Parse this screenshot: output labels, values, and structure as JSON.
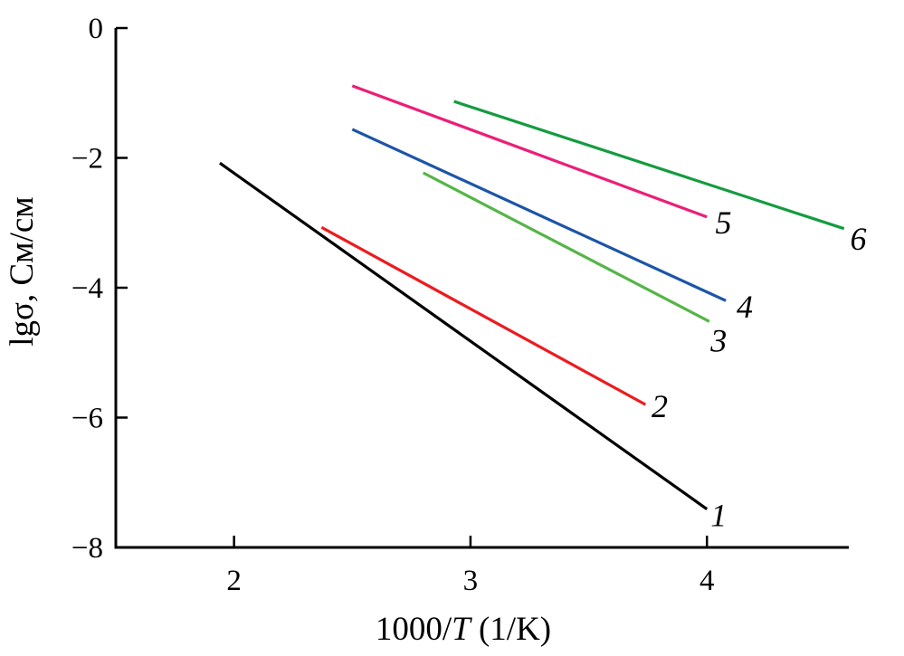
{
  "figure": {
    "background": "#ffffff",
    "axis_color": "#000000"
  },
  "chart_data": {
    "type": "line",
    "title": "",
    "xlabel": "1000/T (1/K)",
    "xlabel_parts": [
      {
        "text": "1000/",
        "italic": false
      },
      {
        "text": "T",
        "italic": true
      },
      {
        "text": " (1/K)",
        "italic": false
      }
    ],
    "ylabel": "lgσ, См/см",
    "xlim": [
      1.5,
      4.6
    ],
    "ylim": [
      -8,
      0
    ],
    "x_ticks": [
      2,
      3,
      4
    ],
    "y_ticks": [
      0,
      -2,
      -4,
      -6,
      -8
    ],
    "grid": false,
    "legend_position": "inline-labels-at-line-ends",
    "series": [
      {
        "name": "curve-1",
        "label": "1",
        "color": "#000000",
        "points": [
          [
            1.94,
            -2.08
          ],
          [
            4.0,
            -7.41
          ]
        ],
        "label_pos": [
          4.05,
          -7.49
        ]
      },
      {
        "name": "curve-2",
        "label": "2",
        "color": "#EC1B1E",
        "points": [
          [
            2.37,
            -3.07
          ],
          [
            3.74,
            -5.8
          ]
        ],
        "label_pos": [
          3.8,
          -5.81
        ]
      },
      {
        "name": "curve-3",
        "label": "3",
        "color": "#55B548",
        "points": [
          [
            2.8,
            -2.23
          ],
          [
            4.01,
            -4.52
          ]
        ],
        "label_pos": [
          4.05,
          -4.8
        ]
      },
      {
        "name": "curve-4",
        "label": "4",
        "color": "#1C55A8",
        "points": [
          [
            2.5,
            -1.56
          ],
          [
            4.08,
            -4.2
          ]
        ],
        "label_pos": [
          4.16,
          -4.28
        ]
      },
      {
        "name": "curve-5",
        "label": "5",
        "color": "#EC1E77",
        "points": [
          [
            2.5,
            -0.89
          ],
          [
            4.0,
            -2.91
          ]
        ],
        "label_pos": [
          4.07,
          -2.98
        ]
      },
      {
        "name": "curve-6",
        "label": "6",
        "color": "#149C3F",
        "points": [
          [
            2.93,
            -1.13
          ],
          [
            4.58,
            -3.09
          ]
        ],
        "label_pos": [
          4.64,
          -3.23
        ]
      }
    ]
  }
}
